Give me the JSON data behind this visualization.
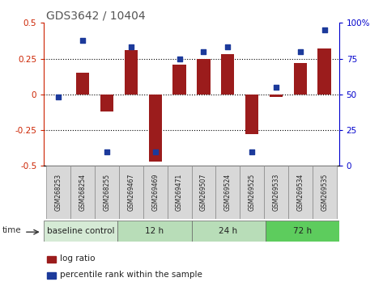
{
  "title": "GDS3642 / 10404",
  "samples": [
    "GSM268253",
    "GSM268254",
    "GSM268255",
    "GSM269467",
    "GSM269469",
    "GSM269471",
    "GSM269507",
    "GSM269524",
    "GSM269525",
    "GSM269533",
    "GSM269534",
    "GSM269535"
  ],
  "log_ratio": [
    0.0,
    0.15,
    -0.12,
    0.31,
    -0.47,
    0.21,
    0.25,
    0.28,
    -0.28,
    -0.02,
    0.22,
    0.32
  ],
  "percentile_rank": [
    48,
    88,
    10,
    83,
    10,
    75,
    80,
    83,
    10,
    55,
    80,
    95
  ],
  "ylim_left": [
    -0.5,
    0.5
  ],
  "ylim_right": [
    0,
    100
  ],
  "yticks_left": [
    -0.5,
    -0.25,
    0,
    0.25,
    0.5
  ],
  "yticks_right": [
    0,
    25,
    50,
    75,
    100
  ],
  "ytick_labels_left": [
    "-0.5",
    "-0.25",
    "0",
    "0.25",
    "0.5"
  ],
  "ytick_labels_right": [
    "0",
    "25",
    "50",
    "75",
    "100%"
  ],
  "dotted_lines": [
    -0.25,
    0.0,
    0.25
  ],
  "bar_color": "#9B1C1C",
  "dot_color": "#1C3A9B",
  "group_colors": [
    "#d5ead5",
    "#b8ddb8",
    "#b8ddb8",
    "#5dcc5d"
  ],
  "group_labels": [
    "baseline control",
    "12 h",
    "24 h",
    "72 h"
  ],
  "group_starts": [
    0,
    3,
    6,
    9
  ],
  "group_ends": [
    3,
    6,
    9,
    12
  ],
  "xticklabel_bg": "#d0d0d0",
  "time_label": "time",
  "bg_color": "#ffffff",
  "left_axis_color": "#cc2200",
  "right_axis_color": "#0000cc",
  "title_color": "#555555"
}
